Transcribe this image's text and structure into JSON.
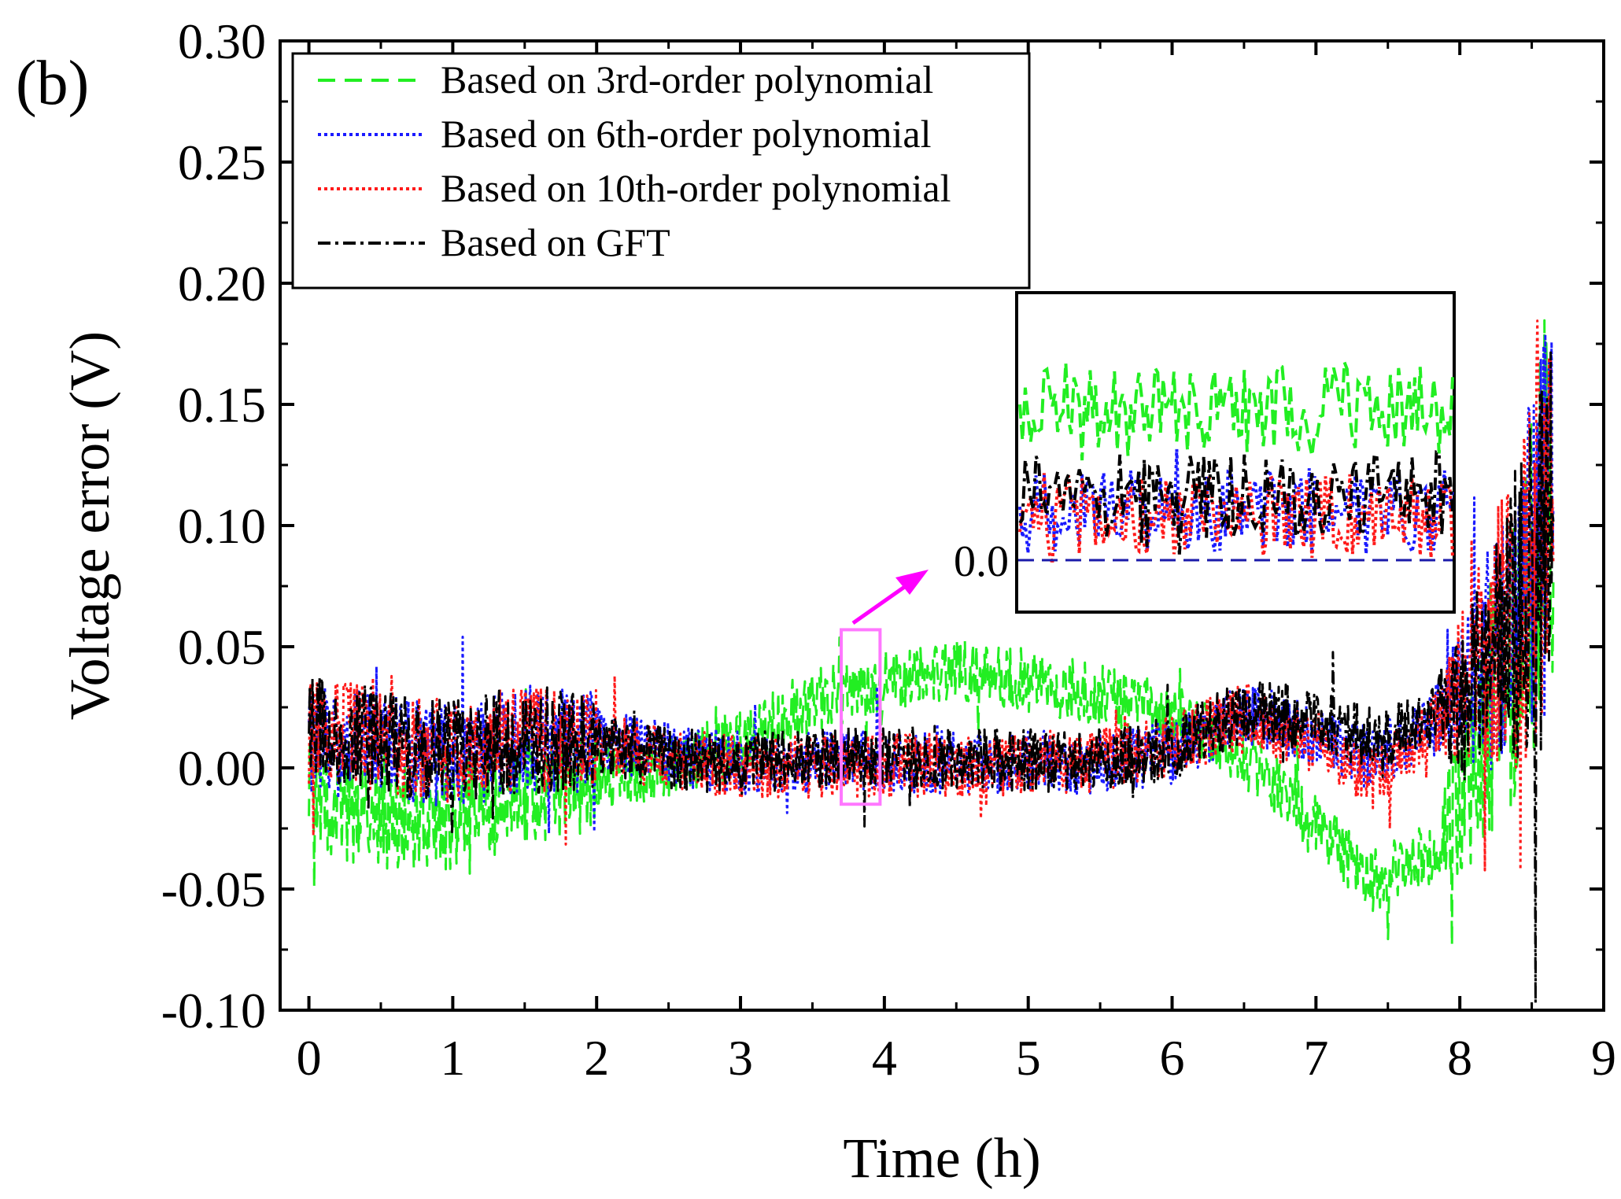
{
  "panel_label": "(b)",
  "chart_data": {
    "type": "line",
    "xlabel": "Time (h)",
    "ylabel": "Voltage error (V)",
    "xlim": [
      -0.2,
      9
    ],
    "ylim": [
      -0.1,
      0.3
    ],
    "xticks": [
      "0",
      "1",
      "2",
      "3",
      "4",
      "5",
      "6",
      "7",
      "8",
      "9"
    ],
    "yticks": [
      "-0.10",
      "-0.05",
      "0.00",
      "0.05",
      "0.10",
      "0.15",
      "0.20",
      "0.25",
      "0.30"
    ],
    "grid": false,
    "legend_position": "top-left",
    "series": [
      {
        "name": "Based on 3rd-order polynomial",
        "color": "#22ee22",
        "style": "dashed",
        "trend": [
          [
            0,
            -0.01
          ],
          [
            0.5,
            -0.022
          ],
          [
            1.0,
            -0.02
          ],
          [
            1.5,
            -0.01
          ],
          [
            2.0,
            -0.005
          ],
          [
            2.5,
            0.0
          ],
          [
            3.0,
            0.012
          ],
          [
            3.5,
            0.028
          ],
          [
            4.0,
            0.036
          ],
          [
            4.5,
            0.04
          ],
          [
            5.0,
            0.036
          ],
          [
            5.5,
            0.03
          ],
          [
            6.0,
            0.022
          ],
          [
            6.5,
            0.005
          ],
          [
            7.0,
            -0.025
          ],
          [
            7.4,
            -0.047
          ],
          [
            7.8,
            -0.035
          ],
          [
            8.1,
            -0.002
          ],
          [
            8.4,
            0.05
          ],
          [
            8.65,
            0.12
          ]
        ]
      },
      {
        "name": "Based on 6th-order polynomial",
        "color": "#1a1aff",
        "style": "dotted",
        "trend": [
          [
            0,
            0.012
          ],
          [
            0.5,
            0.01
          ],
          [
            1.0,
            0.005
          ],
          [
            1.5,
            0.012
          ],
          [
            2.0,
            0.012
          ],
          [
            2.5,
            0.006
          ],
          [
            3.0,
            0.002
          ],
          [
            3.5,
            0.002
          ],
          [
            4.0,
            0.003
          ],
          [
            4.5,
            0.002
          ],
          [
            5.0,
            0.003
          ],
          [
            5.5,
            0.002
          ],
          [
            6.0,
            0.006
          ],
          [
            6.5,
            0.022
          ],
          [
            7.0,
            0.014
          ],
          [
            7.4,
            0.003
          ],
          [
            7.8,
            0.018
          ],
          [
            8.1,
            0.035
          ],
          [
            8.4,
            0.06
          ],
          [
            8.65,
            0.11
          ]
        ]
      },
      {
        "name": "Based on 10th-order polynomial",
        "color": "#ff1a1a",
        "style": "dotted",
        "trend": [
          [
            0,
            0.014
          ],
          [
            0.5,
            0.012
          ],
          [
            1.0,
            0.006
          ],
          [
            1.5,
            0.012
          ],
          [
            2.0,
            0.01
          ],
          [
            2.5,
            0.004
          ],
          [
            3.0,
            0.0
          ],
          [
            3.5,
            0.0
          ],
          [
            4.0,
            0.001
          ],
          [
            4.5,
            0.001
          ],
          [
            5.0,
            0.002
          ],
          [
            5.5,
            0.003
          ],
          [
            6.0,
            0.01
          ],
          [
            6.5,
            0.022
          ],
          [
            7.0,
            0.008
          ],
          [
            7.4,
            -0.004
          ],
          [
            7.8,
            0.016
          ],
          [
            8.1,
            0.04
          ],
          [
            8.4,
            0.065
          ],
          [
            8.65,
            0.11
          ]
        ]
      },
      {
        "name": "Based on GFT",
        "color": "#000000",
        "style": "dashdot",
        "trend": [
          [
            0,
            0.018
          ],
          [
            0.5,
            0.012
          ],
          [
            1.0,
            0.006
          ],
          [
            1.5,
            0.012
          ],
          [
            2.0,
            0.01
          ],
          [
            2.5,
            0.004
          ],
          [
            3.0,
            0.002
          ],
          [
            3.5,
            0.004
          ],
          [
            4.0,
            0.004
          ],
          [
            4.5,
            0.003
          ],
          [
            5.0,
            0.003
          ],
          [
            5.5,
            0.003
          ],
          [
            6.0,
            0.008
          ],
          [
            6.5,
            0.024
          ],
          [
            7.0,
            0.02
          ],
          [
            7.4,
            0.012
          ],
          [
            7.8,
            0.02
          ],
          [
            8.1,
            0.035
          ],
          [
            8.4,
            0.06
          ],
          [
            8.65,
            0.1
          ]
        ]
      }
    ],
    "highlight_box": {
      "x": [
        3.7,
        3.97
      ],
      "y": [
        -0.015,
        0.057
      ],
      "color": "#ff66ff"
    },
    "inset": {
      "label": "0.0",
      "zoom_of": "highlight box, Time 3.7–3.97 h",
      "arrow_color": "#ff00ff"
    }
  }
}
